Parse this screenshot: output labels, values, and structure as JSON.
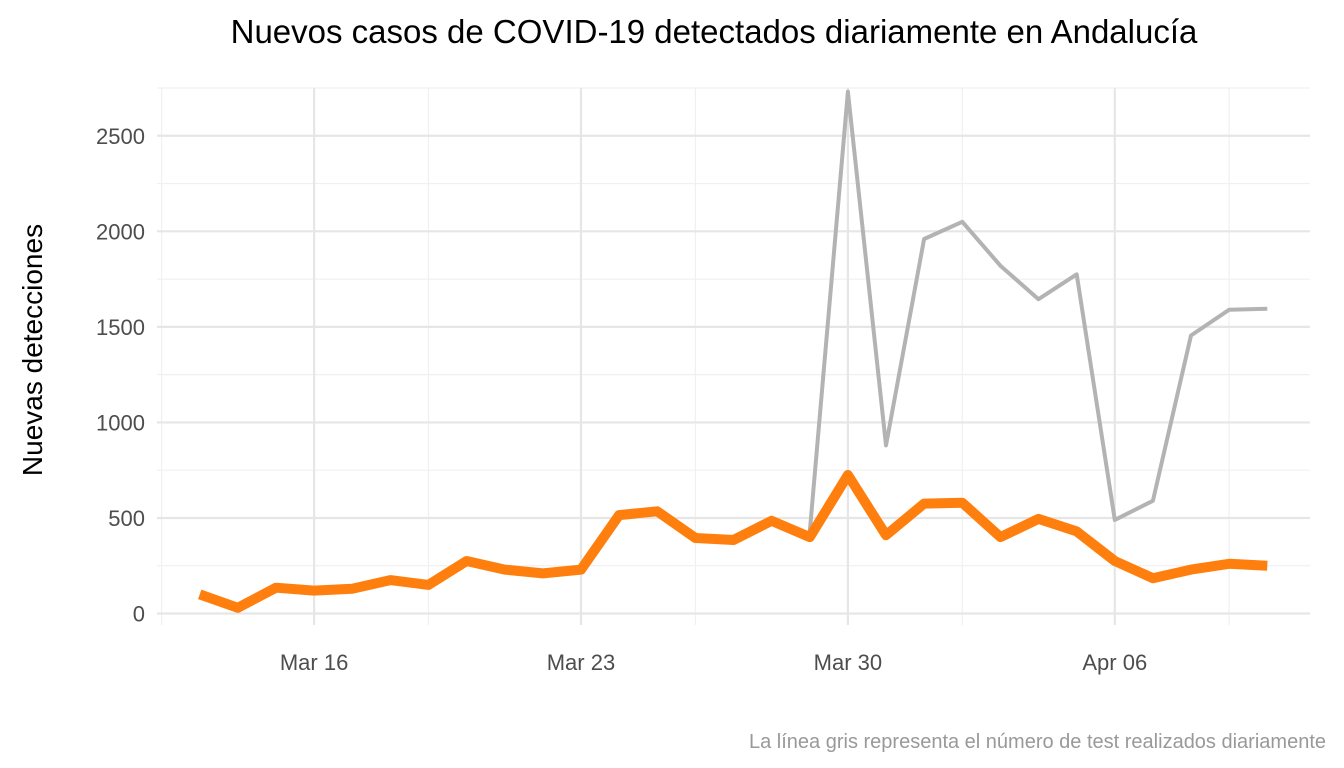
{
  "chart_data": {
    "type": "line",
    "title": "Nuevos casos de COVID-19 detectados diariamente en Andalucía",
    "xlabel": "",
    "ylabel": "Nuevas detecciones",
    "caption": "La línea gris representa el número de test realizados diariamente",
    "x": [
      "2020-03-13",
      "2020-03-14",
      "2020-03-15",
      "2020-03-16",
      "2020-03-17",
      "2020-03-18",
      "2020-03-19",
      "2020-03-20",
      "2020-03-21",
      "2020-03-22",
      "2020-03-23",
      "2020-03-24",
      "2020-03-25",
      "2020-03-26",
      "2020-03-27",
      "2020-03-28",
      "2020-03-29",
      "2020-03-30",
      "2020-03-31",
      "2020-04-01",
      "2020-04-02",
      "2020-04-03",
      "2020-04-04",
      "2020-04-05",
      "2020-04-06",
      "2020-04-07",
      "2020-04-08",
      "2020-04-09",
      "2020-04-10"
    ],
    "x_ticks": [
      {
        "date": "2020-03-16",
        "label": "Mar 16"
      },
      {
        "date": "2020-03-23",
        "label": "Mar 23"
      },
      {
        "date": "2020-03-30",
        "label": "Mar 30"
      },
      {
        "date": "2020-04-06",
        "label": "Apr 06"
      }
    ],
    "y_ticks": [
      0,
      500,
      1000,
      1500,
      2000,
      2500
    ],
    "ylim": [
      -60,
      2750
    ],
    "grid": true,
    "legend": "none",
    "series": [
      {
        "name": "",
        "color": "#b3b3b3",
        "values": [
          null,
          null,
          null,
          null,
          null,
          null,
          null,
          null,
          null,
          null,
          null,
          null,
          null,
          null,
          null,
          null,
          430,
          2730,
          880,
          1960,
          2050,
          1820,
          1645,
          1775,
          490,
          590,
          1455,
          1590,
          1595
        ]
      },
      {
        "name": "",
        "color": "#ff7f0e",
        "values": [
          100,
          30,
          135,
          120,
          130,
          175,
          150,
          275,
          230,
          210,
          230,
          515,
          535,
          395,
          385,
          485,
          400,
          725,
          410,
          575,
          580,
          400,
          495,
          430,
          275,
          185,
          230,
          260,
          250
        ]
      }
    ]
  }
}
